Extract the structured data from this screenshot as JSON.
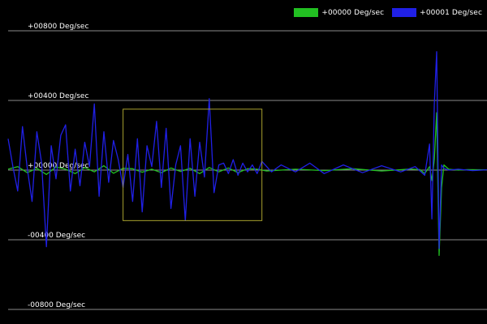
{
  "legend": {
    "items": [
      {
        "label": "+00000 Deg/sec",
        "color": "#22c022"
      },
      {
        "label": "+00001 Deg/sec",
        "color": "#2020e6"
      }
    ]
  },
  "colors": {
    "background": "#000000",
    "gridline": "#8a8a8a",
    "selection_box": "#a7a02e",
    "series_0": "#22c022",
    "series_1": "#2020e6"
  },
  "chart_data": {
    "type": "line",
    "title": "",
    "xlabel": "",
    "ylabel": "",
    "ylim": [
      -1000,
      1000
    ],
    "xlim": [
      0,
      100
    ],
    "grid": "horizontal",
    "legend_position": "top-right",
    "y_ticks": [
      {
        "value": 800,
        "label": "+00800 Deg/sec"
      },
      {
        "value": 400,
        "label": "+00400 Deg/sec"
      },
      {
        "value": 0,
        "label": "+00000 Deg/sec"
      },
      {
        "value": -400,
        "label": "-00400 Deg/sec"
      },
      {
        "value": -800,
        "label": "-00800 Deg/sec"
      }
    ],
    "highlight_region": {
      "x": [
        24,
        53
      ],
      "y": [
        -290,
        350
      ]
    },
    "series": [
      {
        "name": "+00000 Deg/sec",
        "color": "#22c022",
        "x": [
          0,
          2,
          4,
          6,
          8,
          10,
          12,
          14,
          16,
          18,
          20,
          22,
          24,
          26,
          28,
          30,
          32,
          34,
          36,
          38,
          40,
          42,
          44,
          46,
          48,
          50,
          52,
          54,
          60,
          66,
          72,
          78,
          84,
          86,
          87,
          88,
          88.5,
          89,
          89.5,
          90,
          90.5,
          91,
          92,
          94,
          96,
          100
        ],
        "y": [
          5,
          20,
          -15,
          10,
          -25,
          18,
          5,
          -20,
          15,
          -10,
          25,
          -18,
          10,
          8,
          -12,
          5,
          -15,
          12,
          -8,
          10,
          -20,
          15,
          -10,
          12,
          -15,
          8,
          5,
          -5,
          5,
          -3,
          8,
          -5,
          6,
          3,
          -20,
          20,
          -60,
          60,
          330,
          -490,
          -100,
          30,
          5,
          0,
          3,
          2
        ]
      },
      {
        "name": "+00001 Deg/sec",
        "color": "#2020e6",
        "x": [
          0,
          1,
          2,
          3,
          4,
          5,
          6,
          7,
          8,
          9,
          10,
          11,
          12,
          13,
          14,
          15,
          16,
          17,
          18,
          19,
          20,
          21,
          22,
          23,
          24,
          25,
          26,
          27,
          28,
          29,
          30,
          31,
          32,
          33,
          34,
          35,
          36,
          37,
          38,
          39,
          40,
          41,
          42,
          43,
          44,
          45,
          46,
          47,
          48,
          49,
          50,
          51,
          52,
          53,
          54,
          55,
          57,
          60,
          63,
          66,
          70,
          74,
          78,
          82,
          85,
          87,
          88,
          88.5,
          89,
          89.5,
          90,
          90.5,
          91,
          92,
          94,
          97,
          100
        ],
        "y": [
          180,
          20,
          -120,
          250,
          10,
          -180,
          220,
          40,
          -440,
          140,
          -50,
          200,
          260,
          -120,
          120,
          -90,
          160,
          20,
          380,
          -150,
          220,
          -70,
          170,
          60,
          -100,
          90,
          -180,
          180,
          -240,
          140,
          20,
          280,
          -100,
          240,
          -220,
          30,
          140,
          -290,
          180,
          -150,
          160,
          -40,
          410,
          -130,
          30,
          40,
          -20,
          60,
          -30,
          40,
          -10,
          30,
          -20,
          50,
          20,
          -10,
          30,
          -10,
          40,
          -20,
          30,
          -15,
          25,
          -10,
          20,
          -30,
          150,
          -280,
          380,
          680,
          -450,
          30,
          10,
          0,
          5,
          -3,
          2
        ]
      }
    ]
  }
}
